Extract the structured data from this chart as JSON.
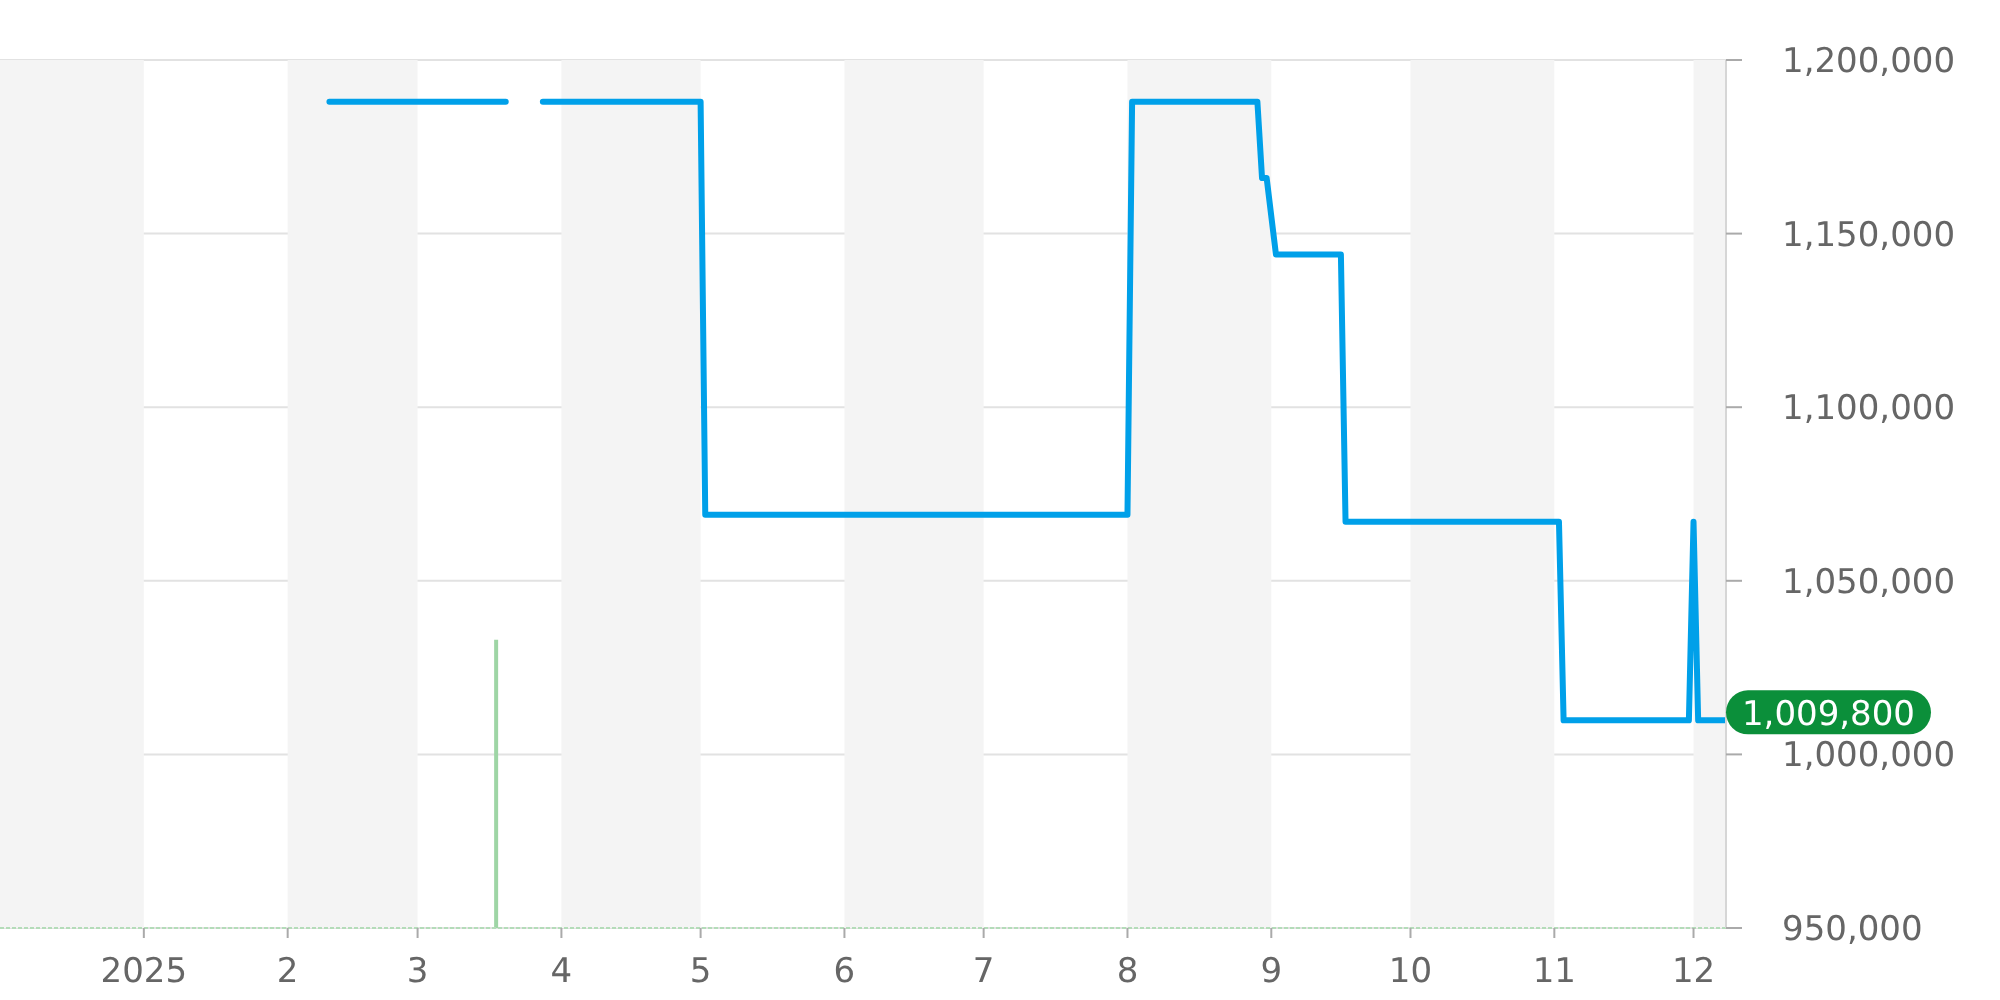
{
  "chart_data": {
    "type": "line",
    "xlim": [
      "2024-12-01",
      "2025-12-08"
    ],
    "xticks": [
      {
        "value": "2025-01-01",
        "label": "2025"
      },
      {
        "value": "2025-02-01",
        "label": "2"
      },
      {
        "value": "2025-03-01",
        "label": "3"
      },
      {
        "value": "2025-04-01",
        "label": "4"
      },
      {
        "value": "2025-05-01",
        "label": "5"
      },
      {
        "value": "2025-06-01",
        "label": "6"
      },
      {
        "value": "2025-07-01",
        "label": "7"
      },
      {
        "value": "2025-08-01",
        "label": "8"
      },
      {
        "value": "2025-09-01",
        "label": "9"
      },
      {
        "value": "2025-10-01",
        "label": "10"
      },
      {
        "value": "2025-11-01",
        "label": "11"
      },
      {
        "value": "2025-12-01",
        "label": "12"
      }
    ],
    "ylim": [
      950000,
      1200000
    ],
    "yticks": [
      {
        "value": 950000,
        "label": "950,000"
      },
      {
        "value": 1000000,
        "label": "1,000,000"
      },
      {
        "value": 1050000,
        "label": "1,050,000"
      },
      {
        "value": 1100000,
        "label": "1,100,000"
      },
      {
        "value": 1150000,
        "label": "1,150,000"
      },
      {
        "value": 1200000,
        "label": "1,200,000"
      }
    ],
    "grid": "y",
    "bands": [
      {
        "axis": "x",
        "from": "2024-12-01",
        "to": "2025-01-01",
        "color": "#f4f4f4"
      },
      {
        "axis": "x",
        "from": "2025-02-01",
        "to": "2025-03-01",
        "color": "#f4f4f4"
      },
      {
        "axis": "x",
        "from": "2025-04-01",
        "to": "2025-05-01",
        "color": "#f4f4f4"
      },
      {
        "axis": "x",
        "from": "2025-06-01",
        "to": "2025-07-01",
        "color": "#f4f4f4"
      },
      {
        "axis": "x",
        "from": "2025-08-01",
        "to": "2025-09-01",
        "color": "#f4f4f4"
      },
      {
        "axis": "x",
        "from": "2025-10-01",
        "to": "2025-11-01",
        "color": "#f4f4f4"
      },
      {
        "axis": "x",
        "from": "2025-12-01",
        "to": "2025-12-08",
        "color": "#f4f4f4"
      }
    ],
    "series": [
      {
        "color": "#00a0e9",
        "x": [
          "2025-02-10",
          "2025-03-20",
          "2025-03-24",
          "2025-03-28",
          "2025-05-01",
          "2025-05-02",
          "2025-08-01",
          "2025-08-02",
          "2025-08-29",
          "2025-08-30",
          "2025-08-31",
          "2025-09-02",
          "2025-09-16",
          "2025-09-17",
          "2025-11-02",
          "2025-11-03",
          "2025-11-30",
          "2025-12-01",
          "2025-12-02",
          "2025-12-08"
        ],
        "values": [
          1188000,
          1188000,
          null,
          1188000,
          1188000,
          1069000,
          1069000,
          1188000,
          1188000,
          1166000,
          1166000,
          1144000,
          1144000,
          1067000,
          1067000,
          1009800,
          1009800,
          1067000,
          1009800,
          1009800
        ],
        "value_labels": [
          null,
          null,
          null,
          null,
          null,
          null,
          null,
          null,
          null,
          null,
          null,
          null,
          null,
          null,
          null,
          null,
          null,
          null,
          null,
          "1,009,800"
        ]
      },
      {
        "type": "bar",
        "color": "#9ed5a5",
        "x": [
          "2025-03-18"
        ],
        "values": [
          1033000
        ]
      }
    ]
  }
}
